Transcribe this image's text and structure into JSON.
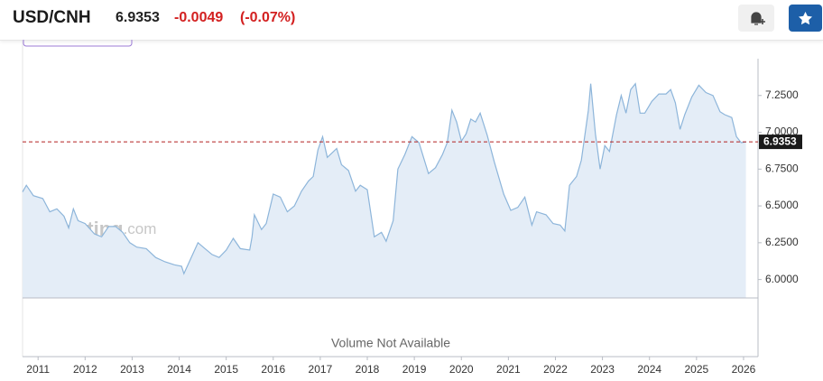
{
  "header": {
    "symbol": "USD/CNH",
    "price": 6.9353,
    "change": -0.0049,
    "change_percent": "(-0.07%)"
  },
  "chart_data": {
    "type": "area",
    "watermark": [
      "Investing",
      ".com"
    ],
    "volume_note": "Volume Not Available",
    "color": "#8db5da",
    "fill": "#e4edf7",
    "current": 6.9353,
    "current_color": "#b22222",
    "x": [
      2010.67,
      2010.75,
      2010.9,
      2011.1,
      2011.25,
      2011.4,
      2011.55,
      2011.65,
      2011.75,
      2011.85,
      2012.0,
      2012.2,
      2012.35,
      2012.5,
      2012.65,
      2012.8,
      2012.95,
      2013.1,
      2013.3,
      2013.5,
      2013.7,
      2013.9,
      2014.05,
      2014.1,
      2014.3,
      2014.4,
      2014.55,
      2014.7,
      2014.85,
      2015.0,
      2015.15,
      2015.3,
      2015.5,
      2015.55,
      2015.6,
      2015.75,
      2015.85,
      2016.0,
      2016.15,
      2016.3,
      2016.45,
      2016.6,
      2016.75,
      2016.85,
      2016.95,
      2017.05,
      2017.15,
      2017.35,
      2017.45,
      2017.6,
      2017.75,
      2017.85,
      2018.0,
      2018.15,
      2018.3,
      2018.4,
      2018.55,
      2018.65,
      2018.8,
      2018.95,
      2019.1,
      2019.3,
      2019.45,
      2019.6,
      2019.7,
      2019.8,
      2019.9,
      2020.0,
      2020.1,
      2020.2,
      2020.3,
      2020.4,
      2020.55,
      2020.7,
      2020.9,
      2021.05,
      2021.2,
      2021.35,
      2021.5,
      2021.6,
      2021.8,
      2021.95,
      2022.1,
      2022.2,
      2022.3,
      2022.45,
      2022.55,
      2022.7,
      2022.75,
      2022.85,
      2022.95,
      2023.05,
      2023.15,
      2023.3,
      2023.4,
      2023.5,
      2023.6,
      2023.7,
      2023.8,
      2023.9,
      2024.05,
      2024.2,
      2024.35,
      2024.45,
      2024.55,
      2024.65,
      2024.75,
      2024.9,
      2025.05,
      2025.2,
      2025.35,
      2025.5,
      2025.6,
      2025.75,
      2025.85,
      2025.95,
      2026.05
    ],
    "values": [
      6.595,
      6.64,
      6.57,
      6.55,
      6.46,
      6.48,
      6.43,
      6.35,
      6.48,
      6.4,
      6.38,
      6.31,
      6.29,
      6.36,
      6.36,
      6.32,
      6.25,
      6.22,
      6.21,
      6.15,
      6.12,
      6.1,
      6.09,
      6.04,
      6.18,
      6.25,
      6.21,
      6.17,
      6.15,
      6.2,
      6.28,
      6.21,
      6.2,
      6.29,
      6.44,
      6.34,
      6.38,
      6.58,
      6.56,
      6.46,
      6.5,
      6.6,
      6.67,
      6.7,
      6.88,
      6.97,
      6.83,
      6.89,
      6.78,
      6.74,
      6.6,
      6.64,
      6.61,
      6.29,
      6.32,
      6.26,
      6.4,
      6.75,
      6.85,
      6.97,
      6.93,
      6.72,
      6.76,
      6.85,
      6.93,
      7.15,
      7.07,
      6.94,
      6.99,
      7.09,
      7.07,
      7.13,
      6.98,
      6.8,
      6.58,
      6.47,
      6.49,
      6.56,
      6.37,
      6.46,
      6.44,
      6.38,
      6.37,
      6.33,
      6.64,
      6.7,
      6.81,
      7.15,
      7.33,
      6.99,
      6.75,
      6.91,
      6.87,
      7.12,
      7.25,
      7.13,
      7.29,
      7.33,
      7.13,
      7.13,
      7.21,
      7.26,
      7.26,
      7.29,
      7.2,
      7.02,
      7.12,
      7.24,
      7.32,
      7.27,
      7.25,
      7.14,
      7.12,
      7.1,
      6.97,
      6.93,
      6.9353
    ],
    "xlim": [
      2010.67,
      2026.3
    ],
    "xticks": [
      2011,
      2012,
      2013,
      2014,
      2015,
      2016,
      2017,
      2018,
      2019,
      2020,
      2021,
      2022,
      2023,
      2024,
      2025,
      2026
    ],
    "ylim": [
      5.875,
      7.5
    ],
    "yticks": [
      {
        "value": 6,
        "label": "6.0000"
      },
      {
        "value": 6.25,
        "label": "6.2500"
      },
      {
        "value": 6.5,
        "label": "6.5000"
      },
      {
        "value": 6.75,
        "label": "6.7500"
      },
      {
        "value": 7,
        "label": "7.0000"
      },
      {
        "value": 7.25,
        "label": "7.2500"
      }
    ]
  }
}
